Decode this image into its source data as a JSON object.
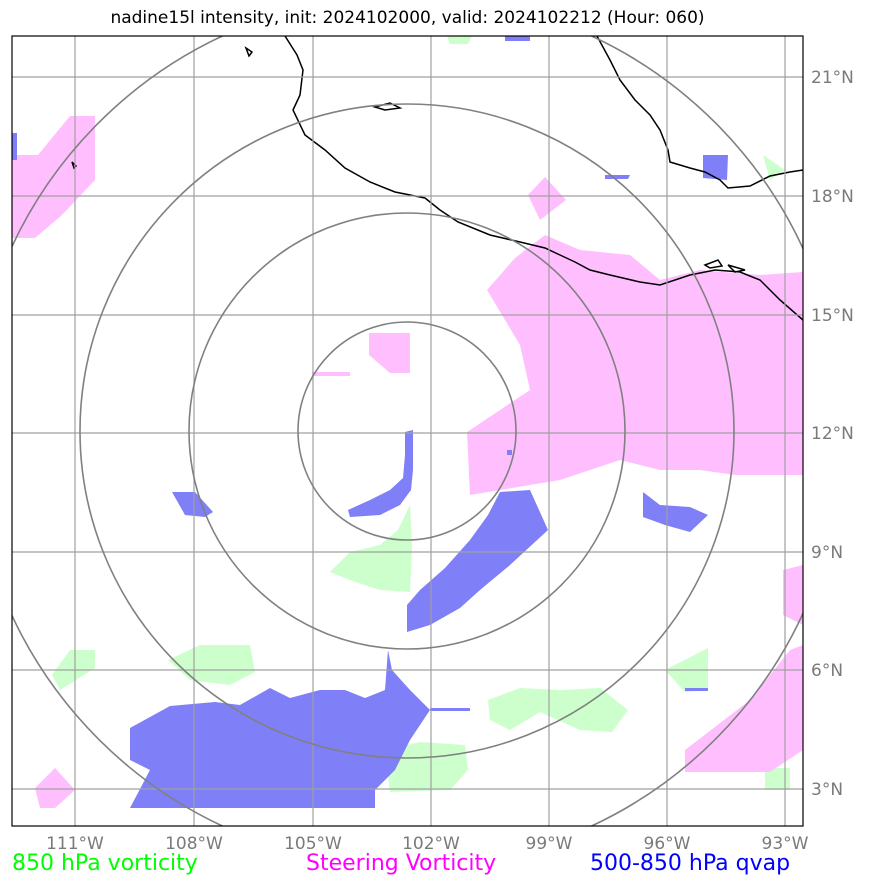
{
  "title": "nadine15l intensity, init: 2024102000, valid: 2024102212 (Hour: 060)",
  "map": {
    "lon_range": [
      -112,
      -92.5
    ],
    "lat_range": [
      2,
      22
    ],
    "center": {
      "lon": -102.5,
      "lat": 12
    },
    "x_ticks": [
      "111°W",
      "108°W",
      "105°W",
      "102°W",
      "99°W",
      "96°W",
      "93°W"
    ],
    "y_ticks": [
      "21°N",
      "18°N",
      "15°N",
      "12°N",
      "9°N",
      "6°N",
      "3°N"
    ],
    "grid": true,
    "range_rings": 4
  },
  "legend": {
    "vorticity_label": "850 hPa vorticity",
    "steering_label": "Steering Vorticity",
    "qvap_label": "500-850 hPa qvap"
  },
  "colors": {
    "vorticity": "#ccffcc",
    "steering": "#ffbfff",
    "qvap": "#7f7ff7",
    "grid": "#a0a0a0",
    "rings": "#808080",
    "coast": "#000000"
  }
}
